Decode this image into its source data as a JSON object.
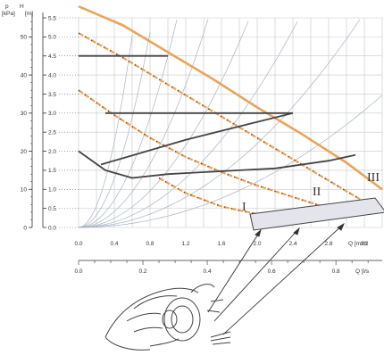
{
  "chart_data": {
    "type": "line",
    "title": "",
    "y_axes": [
      {
        "label_symbol": "p",
        "unit": "[kPa]",
        "ticks": [
          "0",
          "10",
          "20",
          "30",
          "40",
          "50"
        ],
        "range": [
          0,
          55
        ]
      },
      {
        "label_symbol": "H",
        "unit": "[m]",
        "ticks": [
          "0.0",
          "0.5",
          "1.0",
          "1.5",
          "2.0",
          "2.5",
          "3.0",
          "3.5",
          "4.0",
          "4.5",
          "5.0",
          "5.5"
        ],
        "range": [
          0,
          5.5
        ]
      }
    ],
    "x_axes": [
      {
        "unit": "Q [m³/h]",
        "unit_display": "Q [m³/h",
        "ticks": [
          "0.0",
          "0.4",
          "0.8",
          "1.2",
          "1.6",
          "2.0",
          "2.4",
          "2.8",
          "3.2"
        ],
        "range": [
          0,
          3.4
        ]
      },
      {
        "unit": "Q [l/s]",
        "unit_display": "Q [l/s",
        "ticks": [
          "0.0",
          "0.2",
          "0.4",
          "0.6",
          "0.8"
        ],
        "range": [
          0,
          0.944
        ]
      }
    ],
    "speed_labels": [
      "I",
      "II",
      "III"
    ],
    "series": [
      {
        "style": "solid-orange",
        "x": [
          0,
          0.5,
          1.0,
          1.5,
          2.0,
          2.5,
          3.0,
          3.4
        ],
        "y": [
          5.8,
          5.3,
          4.6,
          3.9,
          3.15,
          2.45,
          1.7,
          1.0
        ]
      },
      {
        "style": "dashed-orange",
        "x": [
          0,
          0.5,
          1.0,
          1.5,
          2.0,
          2.5,
          3.0,
          3.4
        ],
        "y": [
          5.1,
          4.45,
          3.75,
          3.05,
          2.35,
          1.65,
          0.95,
          0.4
        ]
      },
      {
        "style": "dashed-orange",
        "x": [
          0,
          0.4,
          0.8,
          1.2,
          1.6,
          2.0,
          2.4,
          2.8,
          3.0
        ],
        "y": [
          3.6,
          2.95,
          2.35,
          1.85,
          1.45,
          1.1,
          0.8,
          0.5,
          0.35
        ]
      },
      {
        "style": "dashed-orange",
        "x": [
          0.9,
          1.2,
          1.6,
          2.0,
          2.2
        ],
        "y": [
          1.3,
          0.9,
          0.55,
          0.35,
          0.28
        ]
      },
      {
        "style": "solid-dark",
        "x": [
          0.0,
          0.3,
          0.6,
          1.0,
          1.4,
          1.8,
          2.2,
          2.8,
          3.1
        ],
        "y": [
          2.0,
          1.5,
          1.3,
          1.4,
          1.45,
          1.5,
          1.55,
          1.75,
          1.9
        ]
      },
      {
        "style": "solid-dark",
        "x": [
          0.25,
          1.2,
          2.4
        ],
        "y": [
          1.65,
          2.3,
          3.0
        ]
      },
      {
        "style": "solid-dark",
        "x": [
          0.3,
          1.4,
          2.4
        ],
        "y": [
          3.0,
          3.0,
          3.0
        ]
      },
      {
        "style": "solid-dark",
        "x": [
          0.0,
          1.0
        ],
        "y": [
          4.5,
          4.5
        ]
      }
    ],
    "grid": true,
    "legend": "none"
  }
}
